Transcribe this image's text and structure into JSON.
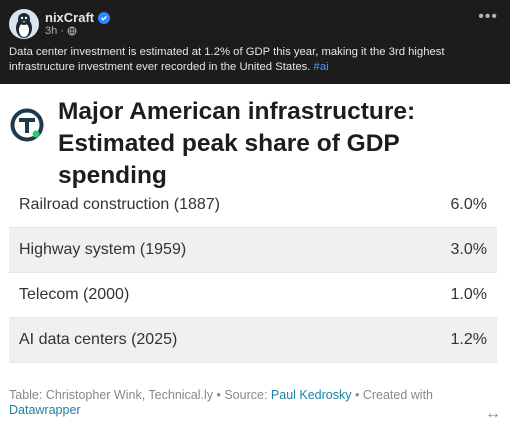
{
  "post": {
    "author": "nixCraft",
    "time": "3h",
    "more_icon": "ellipsis-icon",
    "text": "Data center investment is estimated at 1.2% of GDP this year, making it the 3rd highest infrastructure investment ever recorded in the United States.",
    "hashtag": "#ai"
  },
  "card": {
    "title_line1": "Major American infrastructure:",
    "title_line2": "Estimated peak share of GDP spending",
    "rows": [
      {
        "label": "Railroad construction (1887)",
        "value": "6.0%"
      },
      {
        "label": "Highway system (1959)",
        "value": "3.0%"
      },
      {
        "label": "Telecom (2000)",
        "value": "1.0%"
      },
      {
        "label": "AI data centers (2025)",
        "value": "1.2%"
      }
    ],
    "footer": {
      "prefix": "Table: Christopher Wink, Technical.ly • Source: ",
      "source_link": "Paul Kedrosky",
      "middle": " • Created with ",
      "tool_link": "Datawrapper"
    }
  },
  "colors": {
    "accent": "#2d88ff",
    "logo": "#1f3a4d",
    "logo_dot": "#2ecc71",
    "link": "#1d81a2"
  }
}
